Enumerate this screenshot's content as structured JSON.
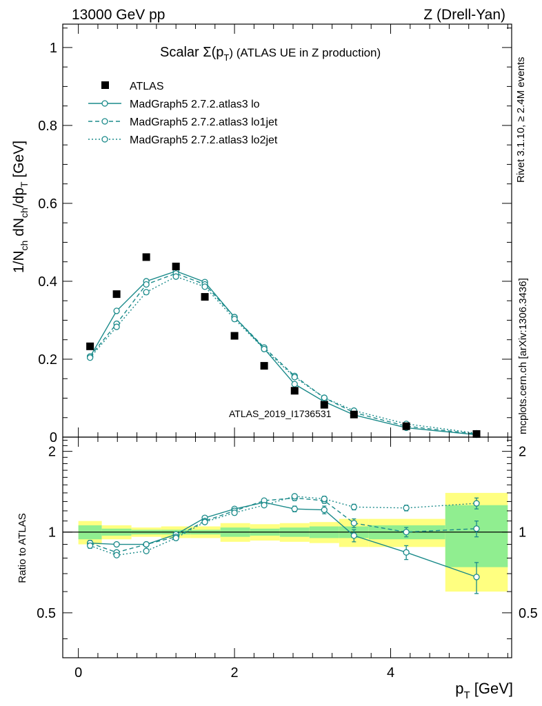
{
  "header": {
    "left": "13000 GeV pp",
    "right": "Z (Drell-Yan)"
  },
  "side_labels": {
    "rivet": "Rivet 3.1.10, ≥ 2.4M events",
    "site": "mcplots.cern.ch [arXiv:1306.3436]"
  },
  "watermark": "ATLAS_2019_I1736531",
  "colors": {
    "mc": "#1a8a8a",
    "data": "#000000",
    "band_stat": "#90ee90",
    "band_total": "#ffff80"
  },
  "chart_data": [
    {
      "type": "scatter",
      "title": "Scalar Σ(p_T) (ATLAS UE in Z production)",
      "title_main": "Scalar Σ(p",
      "title_sub": "T",
      "title_tail": ") (ATLAS UE in Z production)",
      "ylabel": "1/N_ch dN_ch/dp_T [GeV]",
      "xlabel": "",
      "xlim": [
        -0.2,
        5.55
      ],
      "ylim": [
        0,
        1.06
      ],
      "yticks": [
        0,
        0.2,
        0.4,
        0.6,
        0.8,
        1
      ],
      "ytick_labels": [
        "0",
        "0.2",
        "0.4",
        "0.6",
        "0.8",
        "1"
      ],
      "legend_position": "top-left",
      "x": [
        0.15,
        0.49,
        0.87,
        1.25,
        1.62,
        2.0,
        2.38,
        2.77,
        3.15,
        3.53,
        4.2,
        5.1
      ],
      "series": [
        {
          "name": "ATLAS",
          "style": "square",
          "values": [
            0.233,
            0.367,
            0.462,
            0.438,
            0.36,
            0.26,
            0.183,
            0.119,
            0.083,
            0.058,
            0.028,
            0.008
          ]
        },
        {
          "name": "MadGraph5 2.7.2.atlas3 lo",
          "style": "solid",
          "values": [
            0.206,
            0.324,
            0.4,
            0.426,
            0.398,
            0.308,
            0.227,
            0.136,
            0.091,
            0.057,
            0.024,
            0.006
          ]
        },
        {
          "name": "MadGraph5 2.7.2.atlas3 lo1jet",
          "style": "dashed",
          "values": [
            0.207,
            0.291,
            0.392,
            0.42,
            0.392,
            0.308,
            0.23,
            0.157,
            0.101,
            0.063,
            0.028,
            0.008
          ]
        },
        {
          "name": "MadGraph5 2.7.2.atlas3 lo2jet",
          "style": "dotted",
          "values": [
            0.204,
            0.283,
            0.372,
            0.412,
            0.386,
            0.303,
            0.226,
            0.154,
            0.101,
            0.068,
            0.034,
            0.01
          ]
        }
      ]
    },
    {
      "type": "line",
      "title": "",
      "ylabel": "Ratio to ATLAS",
      "xlabel": "p_T [GeV]",
      "xlabel_main": "p",
      "xlabel_sub": "T",
      "xlabel_tail": " [GeV]",
      "xlim": [
        -0.2,
        5.55
      ],
      "ylim": [
        0.34,
        2.26
      ],
      "xticks": [
        0,
        2,
        4
      ],
      "xtick_labels": [
        "0",
        "2",
        "4"
      ],
      "yticks": [
        0.5,
        1,
        2
      ],
      "ytick_labels": [
        "0.5",
        "1",
        "2"
      ],
      "x": [
        0.15,
        0.49,
        0.87,
        1.25,
        1.62,
        2.0,
        2.38,
        2.77,
        3.15,
        3.53,
        4.2,
        5.1
      ],
      "bins": [
        [
          0.0,
          0.3
        ],
        [
          0.3,
          0.68
        ],
        [
          0.68,
          1.06
        ],
        [
          1.06,
          1.44
        ],
        [
          1.44,
          1.82
        ],
        [
          1.82,
          2.2
        ],
        [
          2.2,
          2.58
        ],
        [
          2.58,
          2.96
        ],
        [
          2.96,
          3.34
        ],
        [
          3.34,
          3.72
        ],
        [
          3.72,
          4.7
        ],
        [
          4.7,
          5.5
        ]
      ],
      "band_stat_halfwidth": [
        0.06,
        0.03,
        0.02,
        0.02,
        0.02,
        0.04,
        0.03,
        0.04,
        0.05,
        0.05,
        0.06,
        0.26
      ],
      "band_total_halfwidth": [
        0.1,
        0.06,
        0.04,
        0.05,
        0.05,
        0.08,
        0.07,
        0.08,
        0.09,
        0.12,
        0.12,
        0.4
      ],
      "series": [
        {
          "name": "MadGraph5 2.7.2.atlas3 lo",
          "style": "solid",
          "values": [
            0.91,
            0.9,
            0.9,
            0.98,
            1.13,
            1.22,
            1.29,
            1.22,
            1.21,
            0.97,
            0.84,
            0.68
          ],
          "errors": [
            0.02,
            0.01,
            0.01,
            0.01,
            0.01,
            0.02,
            0.02,
            0.03,
            0.04,
            0.05,
            0.05,
            0.09
          ]
        },
        {
          "name": "MadGraph5 2.7.2.atlas3 lo1jet",
          "style": "dashed",
          "values": [
            0.91,
            0.84,
            0.9,
            0.96,
            1.1,
            1.2,
            1.31,
            1.34,
            1.31,
            1.08,
            1.0,
            1.03
          ],
          "errors": [
            0.02,
            0.01,
            0.01,
            0.01,
            0.01,
            0.02,
            0.02,
            0.03,
            0.03,
            0.04,
            0.04,
            0.07
          ]
        },
        {
          "name": "MadGraph5 2.7.2.atlas3 lo2jet",
          "style": "dotted",
          "values": [
            0.89,
            0.82,
            0.85,
            0.95,
            1.09,
            1.18,
            1.26,
            1.36,
            1.33,
            1.24,
            1.23,
            1.28
          ],
          "errors": [
            0.02,
            0.01,
            0.01,
            0.01,
            0.01,
            0.02,
            0.02,
            0.02,
            0.03,
            0.03,
            0.03,
            0.06
          ]
        }
      ]
    }
  ]
}
